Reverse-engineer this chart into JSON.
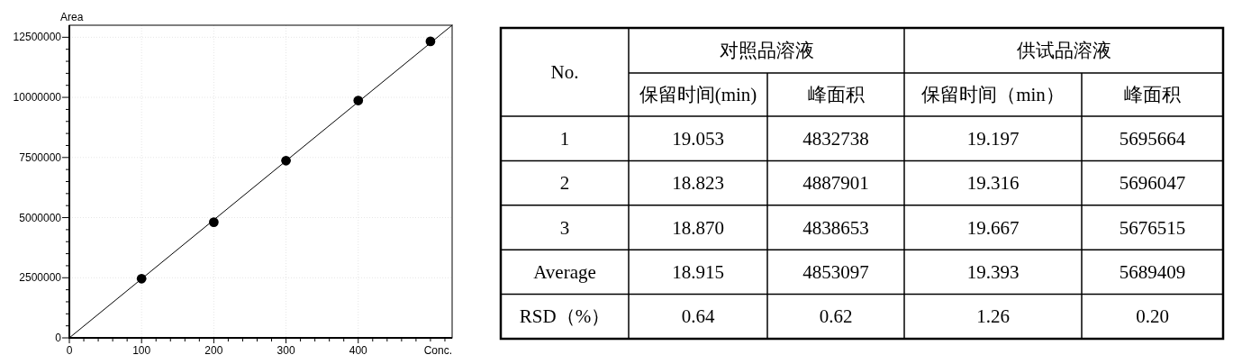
{
  "chart_data": [
    {
      "type": "scatter",
      "xlabel": "Conc.",
      "ylabel": "Area",
      "xlim": [
        0,
        530
      ],
      "ylim": [
        0,
        13000000
      ],
      "xticks": [
        0,
        {
          "value": 20,
          "label": null
        },
        {
          "value": 40,
          "label": null
        },
        {
          "value": 60,
          "label": null
        },
        {
          "value": 80,
          "label": null
        },
        100,
        {
          "value": 120,
          "label": null
        },
        {
          "value": 140,
          "label": null
        },
        {
          "value": 160,
          "label": null
        },
        {
          "value": 180,
          "label": null
        },
        200,
        {
          "value": 220,
          "label": null
        },
        {
          "value": 240,
          "label": null
        },
        {
          "value": 260,
          "label": null
        },
        {
          "value": 280,
          "label": null
        },
        300,
        {
          "value": 320,
          "label": null
        },
        {
          "value": 340,
          "label": null
        },
        {
          "value": 360,
          "label": null
        },
        {
          "value": 380,
          "label": null
        },
        400,
        {
          "value": 420,
          "label": null
        },
        {
          "value": 440,
          "label": null
        },
        {
          "value": 460,
          "label": null
        },
        {
          "value": 480,
          "label": null
        },
        {
          "value": 500,
          "label": null
        },
        {
          "value": 520,
          "label": null
        }
      ],
      "yticks": [
        0,
        {
          "value": 500000,
          "label": null
        },
        {
          "value": 1000000,
          "label": null
        },
        {
          "value": 1500000,
          "label": null
        },
        {
          "value": 2000000,
          "label": null
        },
        2500000,
        {
          "value": 3000000,
          "label": null
        },
        {
          "value": 3500000,
          "label": null
        },
        {
          "value": 4000000,
          "label": null
        },
        {
          "value": 4500000,
          "label": null
        },
        5000000,
        {
          "value": 5500000,
          "label": null
        },
        {
          "value": 6000000,
          "label": null
        },
        {
          "value": 6500000,
          "label": null
        },
        {
          "value": 7000000,
          "label": null
        },
        7500000,
        {
          "value": 8000000,
          "label": null
        },
        {
          "value": 8500000,
          "label": null
        },
        {
          "value": 9000000,
          "label": null
        },
        {
          "value": 9500000,
          "label": null
        },
        10000000,
        {
          "value": 10500000,
          "label": null
        },
        {
          "value": 11000000,
          "label": null
        },
        {
          "value": 11500000,
          "label": null
        },
        {
          "value": 12000000,
          "label": null
        },
        12500000
      ],
      "grid": true,
      "series": [
        {
          "type": "line",
          "color": "#000000",
          "x": [
            0,
            530
          ],
          "values": [
            0,
            13000000
          ]
        },
        {
          "type": "scatter",
          "marker": "circle",
          "color": "#000000",
          "x": [
            100,
            200,
            300,
            400,
            500
          ],
          "values": [
            2460000,
            4810000,
            7370000,
            9870000,
            12330000
          ]
        }
      ]
    },
    {
      "type": "other",
      "annotations": [
        "No.",
        "对照品溶液",
        "供试品溶液",
        "保留时间(min)",
        "峰面积",
        "保留时间（min）",
        "峰面积",
        "1",
        "19.053",
        "4832738",
        "19.197",
        "5695664",
        "2",
        "18.823",
        "4887901",
        "19.316",
        "5696047",
        "3",
        "18.870",
        "4838653",
        "19.667",
        "5676515",
        "Average",
        "18.915",
        "4853097",
        "19.393",
        "5689409",
        "RSD（%）",
        "0.64",
        "0.62",
        "1.26",
        "0.20"
      ]
    }
  ]
}
